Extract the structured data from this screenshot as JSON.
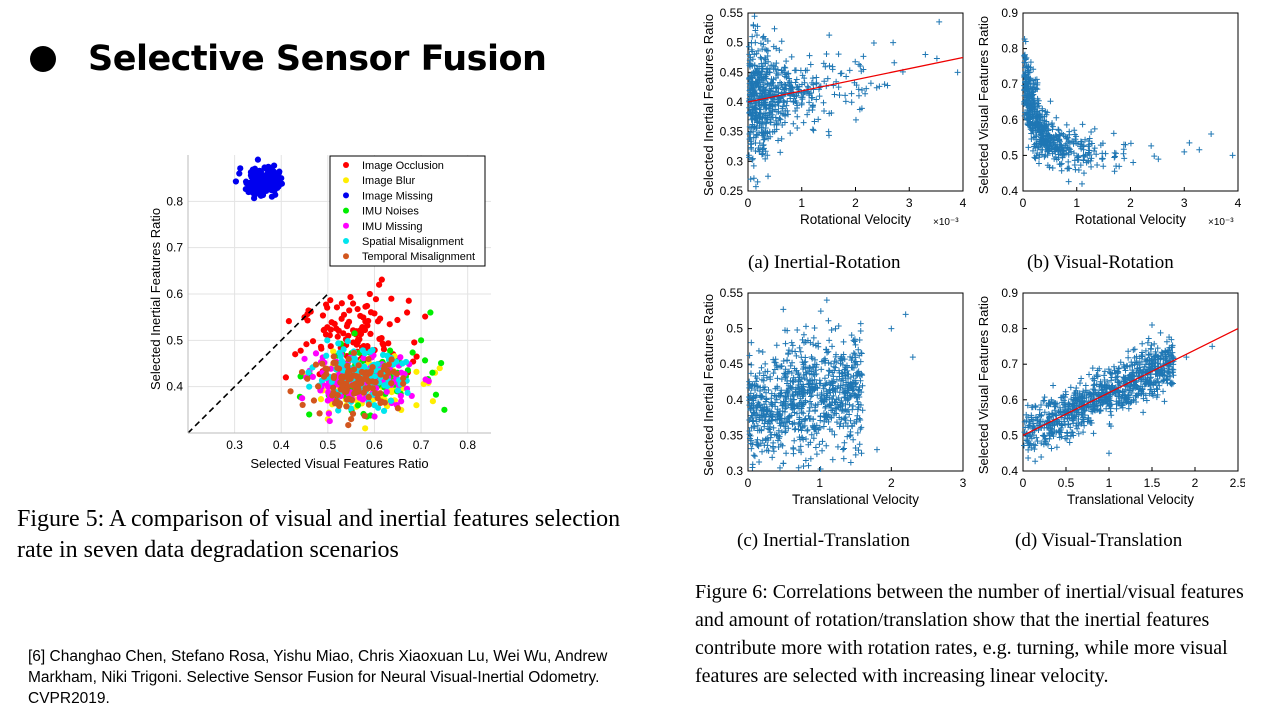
{
  "slide": {
    "title": "Selective Sensor Fusion",
    "citation": "[6] Changhao Chen, Stefano Rosa, Yishu Miao, Chris Xiaoxuan Lu, Wei Wu, Andrew Markham, Niki Trigoni. Selective Sensor Fusion for Neural Visual-Inertial Odometry. CVPR2019."
  },
  "figure5": {
    "caption": "Figure 5: A comparison of visual and inertial features selection rate in seven data degradation scenarios"
  },
  "figure6": {
    "caption": "Figure 6: Correlations between the number of inertial/visual features and amount of rotation/translation show that the inertial features contribute more with rotation rates, e.g. turning, while more visual features are selected with increasing linear velocity.",
    "subcaptions": [
      "(a) Inertial-Rotation",
      "(b) Visual-Rotation",
      "(c) Inertial-Translation",
      "(d) Visual-Translation"
    ]
  },
  "chart_data": [
    {
      "id": "fig5",
      "type": "scatter",
      "xlabel": "Selected Visual Features Ratio",
      "ylabel": "Selected Inertial Features Ratio",
      "xlim": [
        0.2,
        0.85
      ],
      "ylim": [
        0.3,
        0.9
      ],
      "xticks": [
        "0.3",
        "0.4",
        "0.5",
        "0.6",
        "0.7",
        "0.8"
      ],
      "yticks": [
        "0.4",
        "0.5",
        "0.6",
        "0.7",
        "0.8"
      ],
      "grid": true,
      "legend_position": "top-right",
      "diagonal": true,
      "series": [
        {
          "name": "Image Occlusion",
          "color": "#ff0000",
          "center": [
            0.56,
            0.5
          ],
          "spread": [
            0.07,
            0.055
          ],
          "count": 120,
          "sample": [
            [
              0.45,
              0.55
            ],
            [
              0.53,
              0.58
            ],
            [
              0.59,
              0.6
            ],
            [
              0.61,
              0.62
            ],
            [
              0.67,
              0.56
            ],
            [
              0.43,
              0.47
            ],
            [
              0.64,
              0.47
            ],
            [
              0.41,
              0.42
            ]
          ]
        },
        {
          "name": "Image Blur",
          "color": "#ffee00",
          "center": [
            0.58,
            0.4
          ],
          "spread": [
            0.07,
            0.035
          ],
          "count": 90,
          "sample": [
            [
              0.73,
              0.43
            ],
            [
              0.74,
              0.44
            ],
            [
              0.58,
              0.31
            ],
            [
              0.5,
              0.33
            ],
            [
              0.69,
              0.36
            ]
          ]
        },
        {
          "name": "Image Missing",
          "color": "#0000ee",
          "center": [
            0.36,
            0.845
          ],
          "spread": [
            0.022,
            0.02
          ],
          "count": 160,
          "sample": [
            [
              0.31,
              0.86
            ],
            [
              0.35,
              0.89
            ],
            [
              0.4,
              0.85
            ],
            [
              0.38,
              0.81
            ],
            [
              0.33,
              0.82
            ]
          ]
        },
        {
          "name": "IMU Noises",
          "color": "#00ee00",
          "center": [
            0.58,
            0.42
          ],
          "spread": [
            0.07,
            0.04
          ],
          "count": 110,
          "sample": [
            [
              0.72,
              0.56
            ],
            [
              0.75,
              0.35
            ],
            [
              0.46,
              0.34
            ],
            [
              0.7,
              0.5
            ]
          ]
        },
        {
          "name": "IMU Missing",
          "color": "#ff00ff",
          "center": [
            0.57,
            0.41
          ],
          "spread": [
            0.07,
            0.035
          ],
          "count": 110,
          "sample": [
            [
              0.45,
              0.46
            ],
            [
              0.68,
              0.38
            ],
            [
              0.5,
              0.37
            ]
          ]
        },
        {
          "name": "Spatial Misalignment",
          "color": "#00e5ee",
          "center": [
            0.57,
            0.42
          ],
          "spread": [
            0.06,
            0.035
          ],
          "count": 120,
          "sample": [
            [
              0.46,
              0.4
            ],
            [
              0.66,
              0.45
            ],
            [
              0.6,
              0.36
            ]
          ]
        },
        {
          "name": "Temporal Misalignment",
          "color": "#d2561e",
          "center": [
            0.56,
            0.41
          ],
          "spread": [
            0.06,
            0.035
          ],
          "count": 120,
          "sample": [
            [
              0.42,
              0.39
            ],
            [
              0.63,
              0.43
            ],
            [
              0.55,
              0.33
            ]
          ]
        }
      ]
    },
    {
      "id": "fig6a",
      "type": "scatter",
      "xlabel": "Rotational Velocity",
      "ylabel": "Selected Inertial Features Ratio",
      "x_exponent": "×10⁻³",
      "xlim": [
        0,
        4
      ],
      "ylim": [
        0.25,
        0.55
      ],
      "xticks": [
        "0",
        "1",
        "2",
        "3",
        "4"
      ],
      "yticks": [
        "0.25",
        "0.3",
        "0.35",
        "0.4",
        "0.45",
        "0.5",
        "0.55"
      ],
      "marker": "+",
      "color": "#1f77b4",
      "trend": {
        "color": "#ee0000",
        "from": [
          0,
          0.4
        ],
        "to": [
          4,
          0.475
        ]
      },
      "distribution": {
        "x_decay": 0.55,
        "y_center": 0.41,
        "y_spread": 0.04,
        "count": 650
      },
      "sample": [
        [
          0.1,
          0.53
        ],
        [
          0.05,
          0.27
        ],
        [
          2.7,
          0.5
        ],
        [
          3.9,
          0.45
        ],
        [
          3.3,
          0.48
        ],
        [
          1.5,
          0.35
        ]
      ]
    },
    {
      "id": "fig6b",
      "type": "scatter",
      "xlabel": "Rotational Velocity",
      "ylabel": "Selected Visual Features Ratio",
      "x_exponent": "×10⁻³",
      "xlim": [
        0,
        4
      ],
      "ylim": [
        0.4,
        0.9
      ],
      "xticks": [
        "0",
        "1",
        "2",
        "3",
        "4"
      ],
      "yticks": [
        "0.4",
        "0.5",
        "0.6",
        "0.7",
        "0.8",
        "0.9"
      ],
      "marker": "+",
      "color": "#1f77b4",
      "distribution": {
        "x_decay": 0.5,
        "y_center": 0.52,
        "y_spread": 0.03,
        "count": 600
      },
      "sample": [
        [
          0.05,
          0.82
        ],
        [
          0.1,
          0.75
        ],
        [
          0.2,
          0.68
        ],
        [
          3.5,
          0.56
        ],
        [
          3.9,
          0.5
        ],
        [
          3.0,
          0.51
        ]
      ]
    },
    {
      "id": "fig6c",
      "type": "scatter",
      "xlabel": "Translational Velocity",
      "ylabel": "Selected Inertial Features Ratio",
      "xlim": [
        0,
        3
      ],
      "ylim": [
        0.3,
        0.55
      ],
      "xticks": [
        "0",
        "1",
        "2",
        "3"
      ],
      "yticks": [
        "0.3",
        "0.35",
        "0.4",
        "0.45",
        "0.5",
        "0.55"
      ],
      "marker": "+",
      "color": "#1f77b4",
      "distribution": {
        "x_range": [
          0,
          1.6
        ],
        "y_center": 0.4,
        "y_spread": 0.04,
        "count": 900
      },
      "sample": [
        [
          1.1,
          0.54
        ],
        [
          2.2,
          0.52
        ],
        [
          2.3,
          0.46
        ],
        [
          1.8,
          0.33
        ],
        [
          0.5,
          0.3
        ],
        [
          2.0,
          0.5
        ]
      ]
    },
    {
      "id": "fig6d",
      "type": "scatter",
      "xlabel": "Translational Velocity",
      "ylabel": "Selected Visual Features Ratio",
      "xlim": [
        0,
        2.5
      ],
      "ylim": [
        0.4,
        0.9
      ],
      "xticks": [
        "0",
        "0.5",
        "1",
        "1.5",
        "2",
        "2.5"
      ],
      "yticks": [
        "0.4",
        "0.5",
        "0.6",
        "0.7",
        "0.8",
        "0.9"
      ],
      "marker": "+",
      "color": "#1f77b4",
      "trend": {
        "color": "#ee0000",
        "from": [
          0,
          0.5
        ],
        "to": [
          2.5,
          0.8
        ]
      },
      "distribution": {
        "x_range": [
          0,
          1.75
        ],
        "y_spread": 0.035,
        "count": 900
      },
      "sample": [
        [
          1.5,
          0.81
        ],
        [
          2.2,
          0.75
        ],
        [
          1.0,
          0.45
        ],
        [
          0.1,
          0.55
        ],
        [
          1.9,
          0.72
        ]
      ]
    }
  ]
}
